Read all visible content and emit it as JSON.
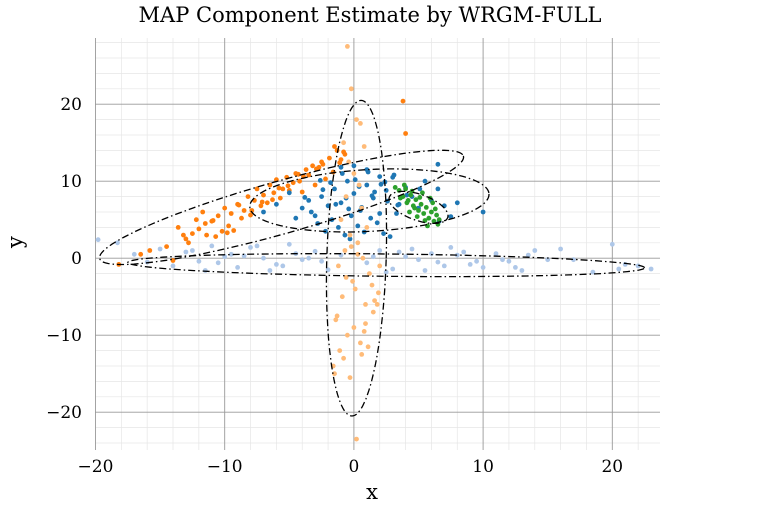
{
  "chart_data": {
    "type": "scatter",
    "title": "MAP Component Estimate by WRGM-FULL",
    "xlabel": "x",
    "ylabel": "y",
    "xlim": [
      -20,
      24
    ],
    "ylim": [
      -24,
      29
    ],
    "xticks": [
      -20,
      -10,
      0,
      10,
      20
    ],
    "yticks": [
      -20,
      -10,
      0,
      10,
      20
    ],
    "xtick_labels": [
      "−20",
      "−10",
      "0",
      "10",
      "20"
    ],
    "ytick_labels": [
      "−20",
      "−10",
      "0",
      "10",
      "20"
    ],
    "grid": true,
    "colors": {
      "c_blue": "#1f77b4",
      "c_orange": "#ff7f0e",
      "c_green": "#2ca02c",
      "c_lightblue": "#aec7e8",
      "c_peach": "#ffbb78",
      "ellipse": "#000000",
      "major_grid": "#999999",
      "minor_grid": "#e6e6e6"
    },
    "ellipses": [
      {
        "name": "orange-ellipse",
        "cx": -5.6,
        "cy": 6.6,
        "rx": 15.6,
        "ry": 3.2,
        "angle_deg": 26
      },
      {
        "name": "blue-ellipse",
        "cx": 1.2,
        "cy": 7.5,
        "rx": 9.3,
        "ry": 4.0,
        "angle_deg": 6
      },
      {
        "name": "green-ellipse",
        "cx": 5.0,
        "cy": 6.6,
        "rx": 2.7,
        "ry": 1.5,
        "angle_deg": -40
      },
      {
        "name": "lightblue-ellipse",
        "cx": 2.5,
        "cy": -0.9,
        "rx": 20.0,
        "ry": 1.45,
        "angle_deg": -1
      },
      {
        "name": "peach-ellipse",
        "cx": 0.2,
        "cy": 0.0,
        "rx": 2.3,
        "ry": 20.5,
        "angle_deg": -1
      }
    ],
    "series": [
      {
        "name": "orange-series",
        "color": "#ff7f0e",
        "x": [
          -18.2,
          -16.5,
          -15.8,
          -14.5,
          -14.0,
          -13.6,
          -13.0,
          -12.5,
          -12.2,
          -12.0,
          -11.7,
          -11.4,
          -11.0,
          -10.7,
          -10.5,
          -10.2,
          -10.0,
          -9.7,
          -9.5,
          -9.3,
          -9.0,
          -8.7,
          -8.5,
          -8.2,
          -8.0,
          -7.7,
          -7.5,
          -7.2,
          -7.0,
          -6.7,
          -6.5,
          -6.2,
          -6.0,
          -5.7,
          -5.5,
          -5.2,
          -5.0,
          -4.7,
          -4.5,
          -4.2,
          -4.0,
          -3.7,
          -3.5,
          -3.2,
          -3.0,
          -2.7,
          -2.5,
          -2.2,
          -1.9,
          -1.6,
          -1.3,
          -1.0,
          -0.7,
          -12.8,
          -11.5,
          -9.8,
          -7.9,
          -6.3,
          -5.1,
          -3.9,
          -2.4,
          -1.5,
          -0.8,
          3.8,
          4.0,
          -13.2,
          -10.9,
          -8.9,
          -7.1,
          -5.8,
          -4.3,
          -2.9,
          -1.1
        ],
        "y": [
          -0.8,
          0.5,
          1.0,
          1.5,
          -0.3,
          4.0,
          2.5,
          3.2,
          5.0,
          3.8,
          6.0,
          3.0,
          4.8,
          2.8,
          5.5,
          3.5,
          6.5,
          4.2,
          5.8,
          3.6,
          7.0,
          5.2,
          6.2,
          8.0,
          5.6,
          7.5,
          9.0,
          6.8,
          8.2,
          7.2,
          9.5,
          8.5,
          10.2,
          7.8,
          9.0,
          10.5,
          8.8,
          9.8,
          11.0,
          10.0,
          8.6,
          11.5,
          10.8,
          12.0,
          9.5,
          11.8,
          12.5,
          10.3,
          13.0,
          11.2,
          14.0,
          12.8,
          13.5,
          2.0,
          4.5,
          3.3,
          6.2,
          7.6,
          9.4,
          10.6,
          12.2,
          14.5,
          13.8,
          20.4,
          16.2,
          3.0,
          4.9,
          6.9,
          7.3,
          9.1,
          10.9,
          11.6,
          12.4
        ]
      },
      {
        "name": "blue-series",
        "color": "#1f77b4",
        "x": [
          -7.0,
          -6.0,
          -5.0,
          -4.0,
          -3.5,
          -3.0,
          -2.5,
          -2.0,
          -1.5,
          -1.0,
          -0.5,
          0.0,
          0.5,
          1.0,
          1.5,
          2.0,
          2.5,
          3.0,
          3.5,
          4.0,
          4.5,
          5.0,
          5.5,
          6.0,
          6.5,
          7.0,
          8.0,
          10.0,
          -2.8,
          -2.2,
          -1.7,
          -1.2,
          -0.7,
          -0.2,
          0.3,
          0.8,
          1.3,
          1.8,
          2.3,
          2.8,
          3.3,
          -1.8,
          -0.9,
          0.1,
          1.1,
          2.1,
          3.1,
          4.1,
          5.1,
          6.5,
          -4.5,
          -3.3,
          -0.6,
          0.6,
          1.6,
          2.6,
          -2.4,
          -1.4,
          -0.4,
          0.4,
          1.4,
          2.4,
          3.4,
          -1.0,
          0.0,
          1.0,
          2.0,
          -3.8,
          -2.6,
          7.5,
          6.6,
          -0.3
        ],
        "y": [
          6.0,
          7.0,
          8.5,
          6.5,
          7.5,
          5.5,
          8.0,
          6.8,
          9.0,
          7.2,
          10.0,
          8.4,
          6.2,
          9.5,
          7.8,
          5.8,
          8.8,
          10.5,
          7.0,
          9.2,
          8.0,
          6.5,
          10.0,
          7.5,
          9.0,
          6.8,
          7.2,
          6.0,
          4.5,
          3.5,
          5.0,
          4.0,
          3.0,
          5.5,
          4.2,
          3.4,
          5.2,
          4.6,
          3.2,
          2.8,
          5.8,
          9.8,
          11.0,
          10.2,
          11.2,
          9.6,
          10.8,
          8.2,
          9.0,
          12.2,
          5.2,
          6.0,
          7.8,
          6.6,
          8.6,
          7.4,
          8.9,
          7.0,
          6.4,
          9.3,
          8.1,
          9.9,
          6.9,
          11.8,
          12.0,
          11.5,
          10.6,
          7.9,
          10.1,
          5.4,
          4.8,
          2.5
        ]
      },
      {
        "name": "green-series",
        "color": "#2ca02c",
        "x": [
          3.2,
          3.5,
          3.8,
          4.0,
          4.2,
          4.4,
          4.6,
          4.8,
          5.0,
          5.2,
          5.4,
          5.6,
          5.8,
          6.0,
          6.2,
          6.4,
          3.6,
          4.1,
          4.7,
          5.3,
          5.9,
          6.5,
          4.3,
          4.9,
          5.5,
          6.1,
          3.9,
          5.1,
          5.7,
          6.3,
          4.5,
          6.6
        ],
        "y": [
          9.2,
          8.8,
          8.0,
          9.0,
          7.5,
          8.2,
          6.8,
          7.6,
          6.2,
          7.0,
          5.8,
          6.6,
          5.2,
          6.0,
          4.8,
          5.6,
          7.8,
          7.2,
          6.5,
          8.5,
          7.8,
          4.4,
          6.0,
          5.4,
          4.9,
          7.2,
          9.5,
          7.9,
          4.2,
          6.4,
          8.7,
          5.0
        ]
      },
      {
        "name": "lightblue-series",
        "color": "#aec7e8",
        "x": [
          -19.8,
          -18.3,
          -17.0,
          -16.0,
          -15.0,
          -14.0,
          -13.0,
          -12.0,
          -11.0,
          -10.0,
          -9.0,
          -8.0,
          -7.0,
          -6.0,
          -5.0,
          -4.0,
          -3.0,
          -2.0,
          -1.0,
          1.0,
          2.0,
          3.0,
          4.0,
          5.0,
          6.0,
          7.0,
          8.0,
          9.0,
          10.0,
          11.0,
          12.0,
          13.0,
          14.0,
          15.0,
          17.0,
          18.5,
          20.0,
          20.5,
          21.0,
          22.0,
          23.0,
          -12.5,
          -10.5,
          -8.5,
          -6.5,
          -4.5,
          -2.5,
          2.5,
          4.5,
          6.5,
          8.5,
          11.5,
          13.5,
          -7.5,
          -5.5,
          -3.5,
          3.5,
          5.5,
          7.5,
          12.5,
          -11.5,
          -9.5,
          1.5,
          9.5,
          16.0
        ],
        "y": [
          2.4,
          2.0,
          0.5,
          -0.5,
          1.2,
          -1.0,
          0.8,
          -0.4,
          1.6,
          0.2,
          -1.2,
          1.4,
          0.0,
          -0.8,
          1.8,
          -0.2,
          0.9,
          -1.5,
          0.4,
          -0.6,
          1.0,
          -1.4,
          0.2,
          -0.2,
          0.6,
          -1.0,
          0.4,
          -0.8,
          -1.2,
          0.6,
          -0.4,
          -1.6,
          1.0,
          -0.2,
          -0.2,
          -1.8,
          1.8,
          -1.4,
          -0.8,
          -1.0,
          -1.4,
          1.0,
          -0.6,
          0.3,
          -1.6,
          0.6,
          -0.4,
          -1.8,
          1.2,
          -0.5,
          0.8,
          -0.2,
          0.4,
          1.6,
          -1.0,
          0.0,
          0.8,
          -1.6,
          1.4,
          -1.2,
          -1.6,
          0.5,
          0.2,
          -0.4,
          1.2
        ]
      },
      {
        "name": "peach-series",
        "color": "#ffbb78",
        "x": [
          -0.5,
          -0.2,
          0.2,
          0.5,
          -0.8,
          0.8,
          -0.4,
          0.0,
          0.4,
          -0.6,
          0.6,
          -1.0,
          1.0,
          -0.3,
          0.3,
          -0.7,
          0.7,
          -1.2,
          1.2,
          -0.1,
          0.1,
          -0.9,
          0.9,
          1.5,
          -1.4,
          0.0,
          -0.5,
          0.5,
          -1.1,
          1.1,
          -1.6,
          1.6,
          0.2,
          -0.3,
          -0.8,
          0.8,
          1.8,
          1.4,
          2.0,
          -1.3,
          0.6,
          -0.6,
          0.3,
          -0.2,
          1.9,
          -1.5,
          0.9
        ],
        "y": [
          27.5,
          22.0,
          18.0,
          17.5,
          15.0,
          14.5,
          12.5,
          11.0,
          9.5,
          8.0,
          6.5,
          5.0,
          4.0,
          3.0,
          2.0,
          1.0,
          0.0,
          -1.0,
          -2.0,
          -3.0,
          -4.0,
          -5.0,
          -6.0,
          -7.0,
          -8.0,
          -9.0,
          -10.0,
          -11.0,
          -12.0,
          -11.5,
          -14.0,
          -5.5,
          -23.5,
          -15.5,
          -13.0,
          -9.5,
          -6.0,
          -3.5,
          -1.0,
          -7.5,
          -12.5,
          -2.5,
          0.5,
          1.5,
          -4.5,
          -15.0,
          -8.5
        ]
      }
    ]
  }
}
